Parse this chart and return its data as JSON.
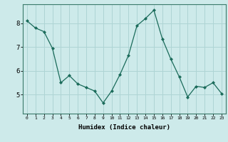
{
  "x": [
    0,
    1,
    2,
    3,
    4,
    5,
    6,
    7,
    8,
    9,
    10,
    11,
    12,
    13,
    14,
    15,
    16,
    17,
    18,
    19,
    20,
    21,
    22,
    23
  ],
  "y": [
    8.1,
    7.8,
    7.65,
    6.95,
    5.5,
    5.8,
    5.45,
    5.3,
    5.15,
    4.65,
    5.15,
    5.85,
    6.65,
    7.9,
    8.2,
    8.55,
    7.35,
    6.5,
    5.75,
    4.9,
    5.35,
    5.3,
    5.5,
    5.05
  ],
  "xlabel": "Humidex (Indice chaleur)",
  "ylim": [
    4.2,
    8.8
  ],
  "xlim": [
    -0.5,
    23.5
  ],
  "yticks": [
    5,
    6,
    7,
    8
  ],
  "xticks": [
    0,
    1,
    2,
    3,
    4,
    5,
    6,
    7,
    8,
    9,
    10,
    11,
    12,
    13,
    14,
    15,
    16,
    17,
    18,
    19,
    20,
    21,
    22,
    23
  ],
  "line_color": "#1a6b5a",
  "marker": "D",
  "marker_size": 2.0,
  "bg_color": "#cdeaea",
  "grid_color": "#aed4d4",
  "axes_color": "#3a7a6a"
}
